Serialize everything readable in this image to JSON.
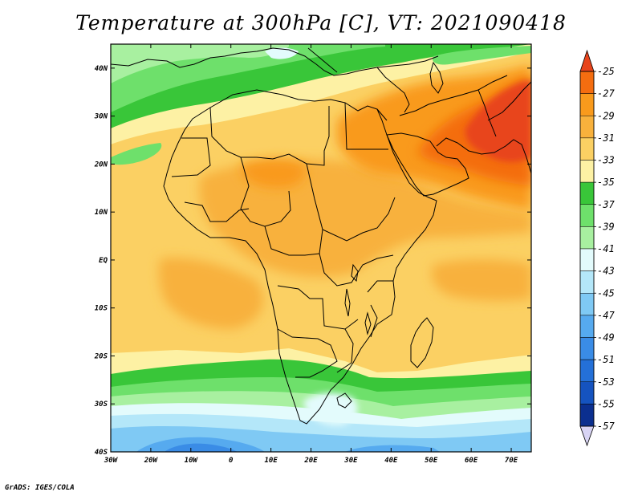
{
  "title": "Temperature at 300hPa [C], VT: 2021090418",
  "credit": "GrADS: IGES/COLA",
  "map": {
    "lat_labels": [
      "40N",
      "30N",
      "20N",
      "10N",
      "EQ",
      "10S",
      "20S",
      "30S",
      "40S"
    ],
    "lat_values": [
      40,
      30,
      20,
      10,
      0,
      -10,
      -20,
      -30,
      -40
    ],
    "lon_labels": [
      "30W",
      "20W",
      "10W",
      "0",
      "10E",
      "20E",
      "30E",
      "40E",
      "50E",
      "60E",
      "70E"
    ],
    "lon_values": [
      -30,
      -20,
      -10,
      0,
      10,
      20,
      30,
      40,
      50,
      60,
      70
    ],
    "lon_range": [
      -30,
      75
    ],
    "lat_range": [
      -40,
      45
    ]
  },
  "colorbar": {
    "labels": [
      "-25",
      "-27",
      "-29",
      "-31",
      "-33",
      "-35",
      "-37",
      "-39",
      "-41",
      "-43",
      "-45",
      "-47",
      "-49",
      "-51",
      "-53",
      "-55",
      "-57"
    ],
    "colors": [
      "#e8441c",
      "#f46d10",
      "#f99a1c",
      "#f8b13c",
      "#fbd063",
      "#fdf1a4",
      "#39c639",
      "#6ee06b",
      "#a8f0a0",
      "#e3fbfc",
      "#b4e7f9",
      "#7fc9f4",
      "#56aaef",
      "#3a8ce6",
      "#2470d8",
      "#1553bf",
      "#0b2f8f"
    ],
    "top_arrow_color": "#e8441c",
    "bottom_arrow_color": "#d8d4f4"
  }
}
